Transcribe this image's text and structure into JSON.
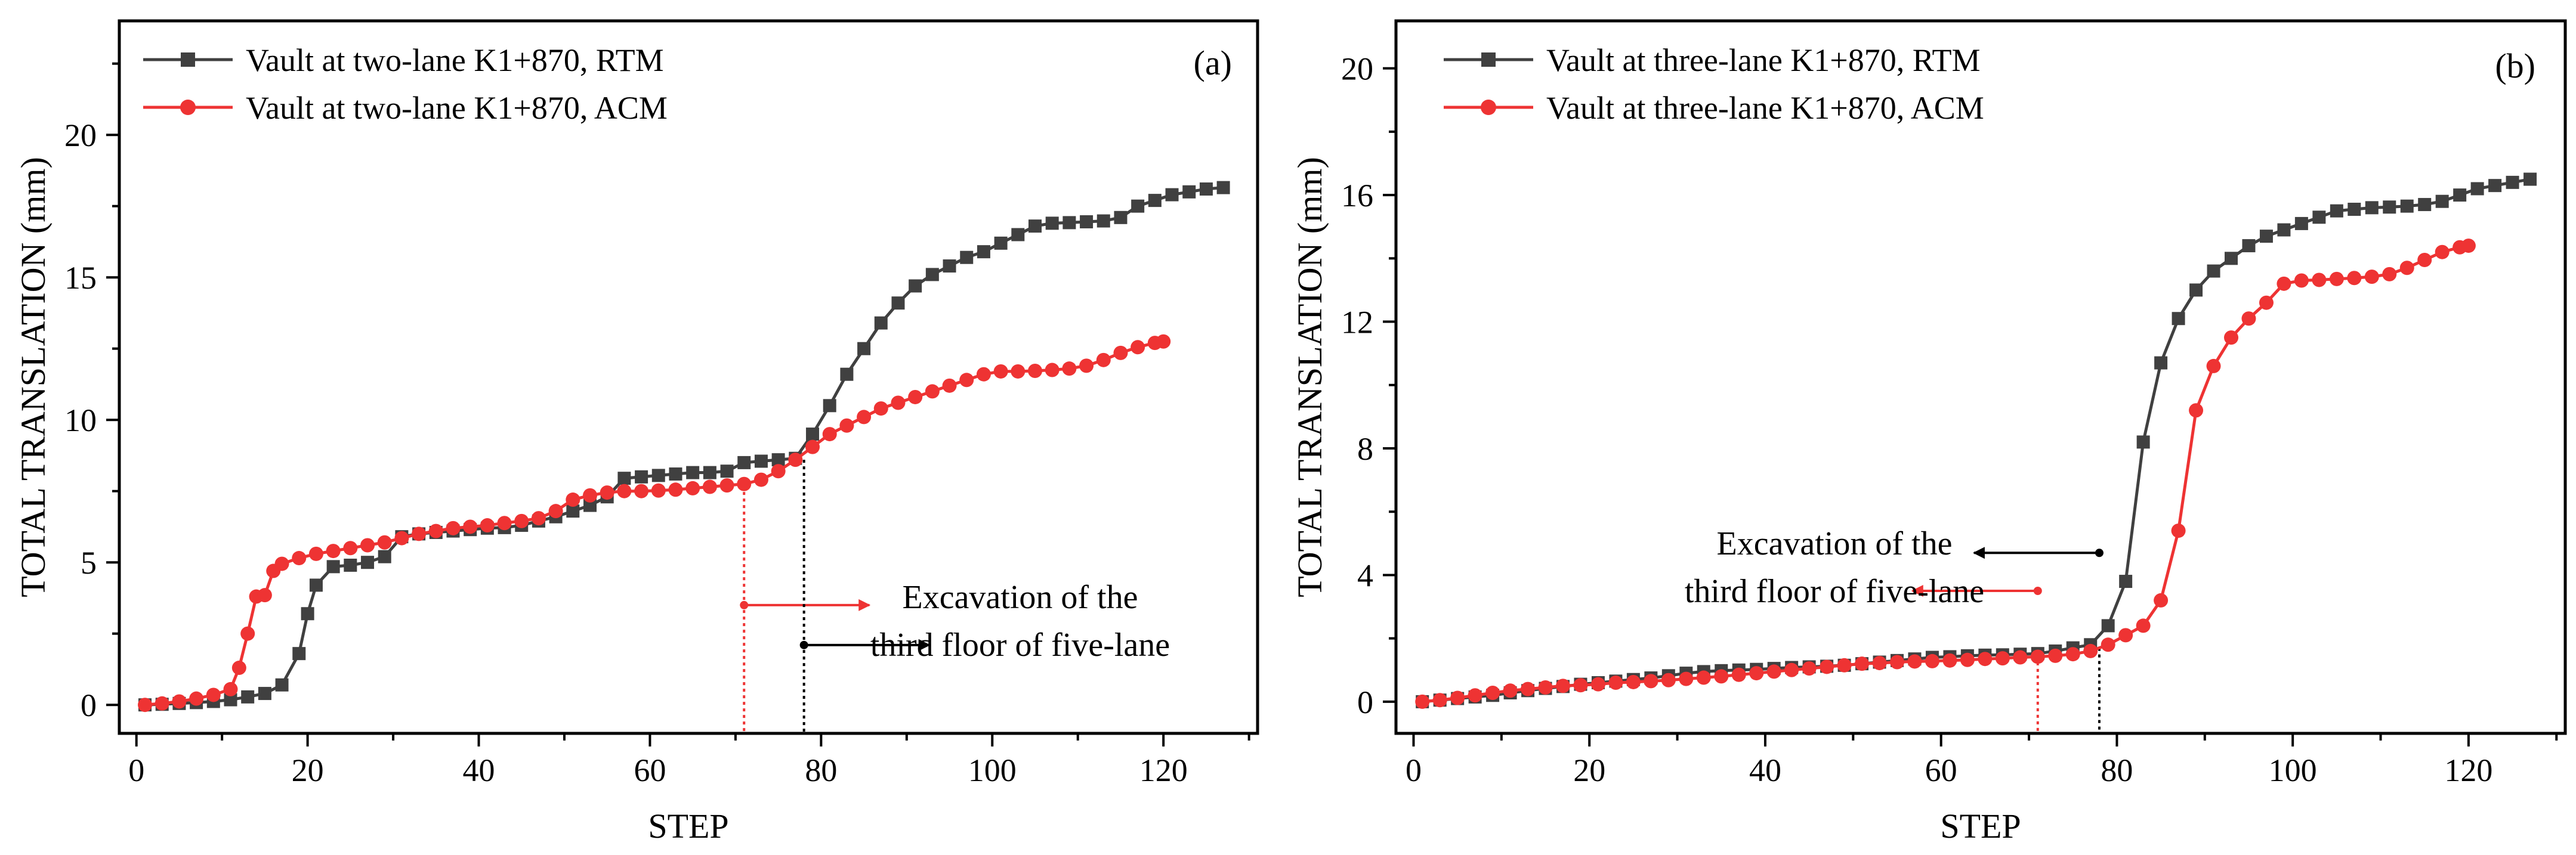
{
  "chart_data": [
    {
      "type": "line",
      "panel_label": "(a)",
      "xlabel": "STEP",
      "ylabel": "TOTAL TRANSLATION (mm)",
      "xlim": [
        -2,
        131
      ],
      "ylim": [
        -1,
        24
      ],
      "xticks": [
        0,
        20,
        40,
        60,
        80,
        100,
        120
      ],
      "yticks": [
        0,
        5,
        10,
        15,
        20
      ],
      "legend_position": "top-left",
      "series": [
        {
          "name": "Vault at two-lane K1+870, RTM",
          "color": "#404040",
          "marker": "square",
          "x": [
            1,
            3,
            5,
            7,
            9,
            11,
            13,
            15,
            17,
            19,
            20,
            21,
            23,
            25,
            27,
            29,
            31,
            33,
            35,
            37,
            39,
            41,
            43,
            45,
            47,
            49,
            51,
            53,
            55,
            57,
            59,
            61,
            63,
            65,
            67,
            69,
            71,
            73,
            75,
            77,
            79,
            81,
            83,
            85,
            87,
            89,
            91,
            93,
            95,
            97,
            99,
            101,
            103,
            105,
            107,
            109,
            111,
            113,
            115,
            117,
            119,
            121,
            123,
            125,
            127
          ],
          "y": [
            0,
            0.02,
            0.05,
            0.08,
            0.12,
            0.18,
            0.28,
            0.4,
            0.7,
            1.8,
            3.2,
            4.2,
            4.85,
            4.9,
            5.0,
            5.2,
            5.9,
            6.0,
            6.05,
            6.1,
            6.15,
            6.2,
            6.22,
            6.3,
            6.45,
            6.6,
            6.8,
            7.0,
            7.3,
            7.95,
            8.0,
            8.05,
            8.1,
            8.15,
            8.15,
            8.2,
            8.5,
            8.55,
            8.6,
            8.65,
            9.5,
            10.5,
            11.6,
            12.5,
            13.4,
            14.1,
            14.7,
            15.1,
            15.4,
            15.7,
            15.9,
            16.2,
            16.5,
            16.8,
            16.9,
            16.92,
            16.95,
            16.98,
            17.1,
            17.5,
            17.7,
            17.9,
            18.0,
            18.1,
            18.15
          ]
        },
        {
          "name": "Vault at two-lane K1+870, ACM",
          "color": "#EE3333",
          "marker": "circle",
          "x": [
            1,
            3,
            5,
            7,
            9,
            11,
            12,
            13,
            14,
            15,
            16,
            17,
            19,
            21,
            23,
            25,
            27,
            29,
            31,
            33,
            35,
            37,
            39,
            41,
            43,
            45,
            47,
            49,
            51,
            53,
            55,
            57,
            59,
            61,
            63,
            65,
            67,
            69,
            71,
            73,
            75,
            77,
            79,
            81,
            83,
            85,
            87,
            89,
            91,
            93,
            95,
            97,
            99,
            101,
            103,
            105,
            107,
            109,
            111,
            113,
            115,
            117,
            119,
            120
          ],
          "y": [
            0,
            0.05,
            0.12,
            0.22,
            0.35,
            0.55,
            1.3,
            2.5,
            3.8,
            3.85,
            4.7,
            4.95,
            5.15,
            5.3,
            5.4,
            5.5,
            5.6,
            5.7,
            5.85,
            6.0,
            6.1,
            6.2,
            6.25,
            6.3,
            6.38,
            6.45,
            6.55,
            6.8,
            7.2,
            7.35,
            7.45,
            7.5,
            7.5,
            7.52,
            7.55,
            7.6,
            7.65,
            7.7,
            7.75,
            7.9,
            8.2,
            8.6,
            9.05,
            9.5,
            9.8,
            10.1,
            10.4,
            10.6,
            10.8,
            11.0,
            11.2,
            11.4,
            11.6,
            11.7,
            11.7,
            11.72,
            11.75,
            11.8,
            11.9,
            12.1,
            12.35,
            12.55,
            12.7,
            12.75
          ]
        }
      ],
      "annotation": {
        "line1": "Excavation of the",
        "line2": "third floor of five-lane",
        "markers": [
          {
            "step": 71,
            "color": "#EE3333",
            "arrow_y": 3.5,
            "direction": "right"
          },
          {
            "step": 78,
            "color": "#000000",
            "arrow_y": 2.1,
            "direction": "right"
          }
        ]
      }
    },
    {
      "type": "line",
      "panel_label": "(b)",
      "xlabel": "STEP",
      "ylabel": "TOTAL TRANSLATION (mm)",
      "xlim": [
        -2,
        131
      ],
      "ylim": [
        -1,
        21.5
      ],
      "xticks": [
        0,
        20,
        40,
        60,
        80,
        100,
        120
      ],
      "yticks": [
        0,
        4,
        8,
        12,
        16,
        20
      ],
      "legend_position": "top-left",
      "series": [
        {
          "name": "Vault at three-lane K1+870, RTM",
          "color": "#404040",
          "marker": "square",
          "x": [
            1,
            3,
            5,
            7,
            9,
            11,
            13,
            15,
            17,
            19,
            21,
            23,
            25,
            27,
            29,
            31,
            33,
            35,
            37,
            39,
            41,
            43,
            45,
            47,
            49,
            51,
            53,
            55,
            57,
            59,
            61,
            63,
            65,
            67,
            69,
            71,
            73,
            75,
            77,
            79,
            81,
            83,
            85,
            87,
            89,
            91,
            93,
            95,
            97,
            99,
            101,
            103,
            105,
            107,
            109,
            111,
            113,
            115,
            117,
            119,
            121,
            123,
            125,
            127
          ],
          "y": [
            0,
            0.05,
            0.1,
            0.15,
            0.2,
            0.28,
            0.35,
            0.42,
            0.48,
            0.55,
            0.6,
            0.65,
            0.7,
            0.75,
            0.82,
            0.9,
            0.95,
            0.98,
            1.0,
            1.02,
            1.05,
            1.08,
            1.1,
            1.12,
            1.15,
            1.2,
            1.25,
            1.3,
            1.35,
            1.4,
            1.42,
            1.45,
            1.47,
            1.48,
            1.5,
            1.52,
            1.6,
            1.7,
            1.8,
            2.4,
            3.8,
            8.2,
            10.7,
            12.1,
            13.0,
            13.6,
            14.0,
            14.4,
            14.7,
            14.9,
            15.1,
            15.3,
            15.5,
            15.55,
            15.6,
            15.62,
            15.65,
            15.7,
            15.8,
            16.0,
            16.2,
            16.3,
            16.4,
            16.5
          ]
        },
        {
          "name": "Vault at three-lane K1+870, ACM",
          "color": "#EE3333",
          "marker": "circle",
          "x": [
            1,
            3,
            5,
            7,
            9,
            11,
            13,
            15,
            17,
            19,
            21,
            23,
            25,
            27,
            29,
            31,
            33,
            35,
            37,
            39,
            41,
            43,
            45,
            47,
            49,
            51,
            53,
            55,
            57,
            59,
            61,
            63,
            65,
            67,
            69,
            71,
            73,
            75,
            77,
            79,
            81,
            83,
            85,
            87,
            89,
            91,
            93,
            95,
            97,
            99,
            101,
            103,
            105,
            107,
            109,
            111,
            113,
            115,
            117,
            119,
            120
          ],
          "y": [
            0,
            0.05,
            0.12,
            0.2,
            0.28,
            0.35,
            0.4,
            0.45,
            0.5,
            0.52,
            0.55,
            0.6,
            0.62,
            0.65,
            0.68,
            0.72,
            0.76,
            0.8,
            0.85,
            0.9,
            0.95,
            1.0,
            1.05,
            1.1,
            1.15,
            1.2,
            1.22,
            1.25,
            1.27,
            1.28,
            1.3,
            1.32,
            1.35,
            1.37,
            1.4,
            1.42,
            1.45,
            1.5,
            1.6,
            1.8,
            2.1,
            2.4,
            3.2,
            5.4,
            9.2,
            10.6,
            11.5,
            12.1,
            12.6,
            13.2,
            13.3,
            13.32,
            13.35,
            13.38,
            13.42,
            13.5,
            13.7,
            13.95,
            14.2,
            14.35,
            14.4
          ]
        }
      ],
      "annotation": {
        "line1": "Excavation of the",
        "line2": "third floor of five-lane",
        "markers": [
          {
            "step": 71,
            "color": "#EE3333",
            "arrow_y": 3.5,
            "direction": "left"
          },
          {
            "step": 78,
            "color": "#000000",
            "arrow_y": 4.7,
            "direction": "left"
          }
        ]
      }
    }
  ]
}
